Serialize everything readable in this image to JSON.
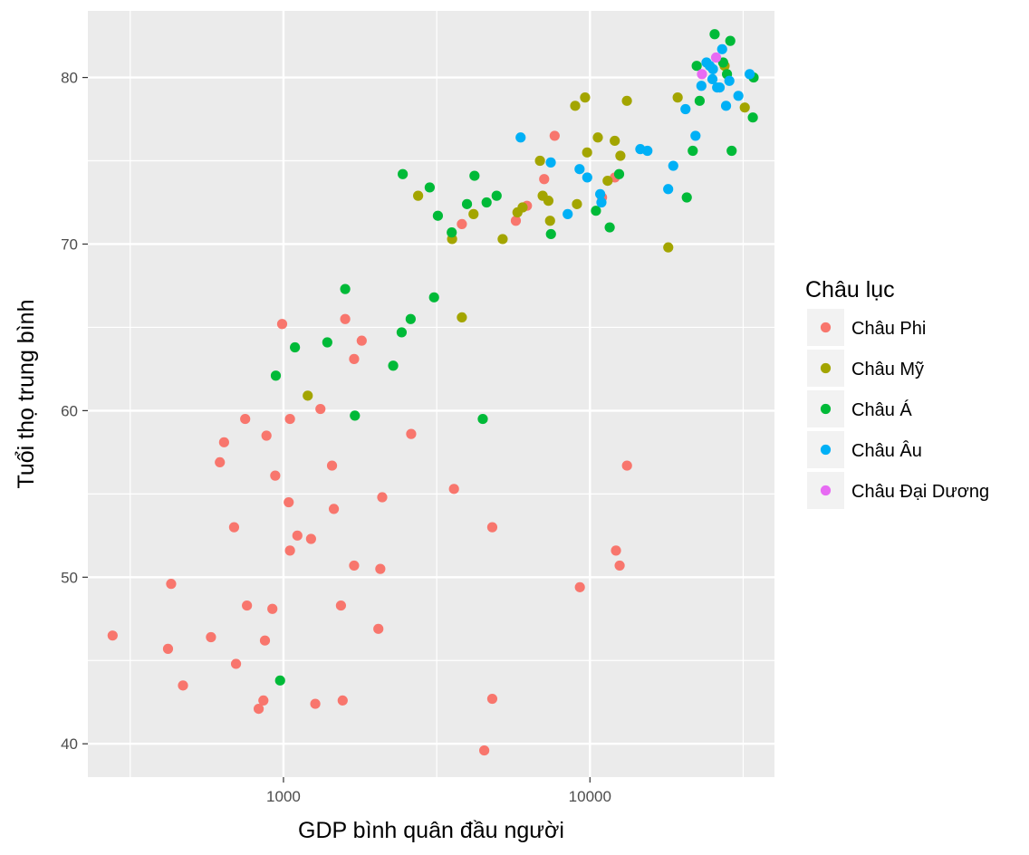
{
  "chart_data": {
    "type": "scatter",
    "xlabel": "GDP bình quân đầu người",
    "ylabel": "Tuổi thọ trung bình",
    "x_scale": "log10",
    "xlim": [
      230,
      40000
    ],
    "ylim": [
      38,
      84
    ],
    "x_ticks": [
      1000,
      10000
    ],
    "x_tick_labels": [
      "1000",
      "10000"
    ],
    "y_ticks": [
      40,
      50,
      60,
      70,
      80
    ],
    "y_tick_labels": [
      "40",
      "50",
      "60",
      "70",
      "80"
    ],
    "grid": true,
    "background": "#ebebeb",
    "legend": {
      "title": "Châu lục",
      "position": "right"
    },
    "series": [
      {
        "name": "Châu Phi",
        "color": "#F8766D",
        "points": [
          [
            277,
            46.5
          ],
          [
            420,
            45.7
          ],
          [
            430,
            49.6
          ],
          [
            470,
            43.5
          ],
          [
            580,
            46.4
          ],
          [
            620,
            56.9
          ],
          [
            640,
            58.1
          ],
          [
            690,
            53.0
          ],
          [
            700,
            44.8
          ],
          [
            750,
            59.5
          ],
          [
            760,
            48.3
          ],
          [
            830,
            42.1
          ],
          [
            860,
            42.6
          ],
          [
            870,
            46.2
          ],
          [
            880,
            58.5
          ],
          [
            920,
            48.1
          ],
          [
            940,
            56.1
          ],
          [
            990,
            65.2
          ],
          [
            1040,
            54.5
          ],
          [
            1050,
            51.6
          ],
          [
            1050,
            59.5
          ],
          [
            1110,
            52.5
          ],
          [
            1230,
            52.3
          ],
          [
            1270,
            42.4
          ],
          [
            1320,
            60.1
          ],
          [
            1440,
            56.7
          ],
          [
            1460,
            54.1
          ],
          [
            1540,
            48.3
          ],
          [
            1560,
            42.6
          ],
          [
            1590,
            65.5
          ],
          [
            1700,
            50.7
          ],
          [
            1700,
            63.1
          ],
          [
            1800,
            64.2
          ],
          [
            2040,
            46.9
          ],
          [
            2070,
            50.5
          ],
          [
            2100,
            54.8
          ],
          [
            2610,
            58.6
          ],
          [
            3600,
            55.3
          ],
          [
            3820,
            71.2
          ],
          [
            4520,
            39.6
          ],
          [
            4800,
            42.7
          ],
          [
            4800,
            53.0
          ],
          [
            5730,
            71.4
          ],
          [
            6230,
            72.3
          ],
          [
            7090,
            73.9
          ],
          [
            7670,
            76.5
          ],
          [
            9270,
            49.4
          ],
          [
            10950,
            72.8
          ],
          [
            12060,
            74.0
          ],
          [
            12160,
            51.6
          ],
          [
            12500,
            50.7
          ],
          [
            13210,
            56.7
          ]
        ]
      },
      {
        "name": "Châu Mỹ",
        "color": "#A3A500",
        "points": [
          [
            1200,
            60.9
          ],
          [
            2750,
            72.9
          ],
          [
            3550,
            70.3
          ],
          [
            3820,
            65.6
          ],
          [
            4170,
            71.8
          ],
          [
            5190,
            70.3
          ],
          [
            5800,
            71.9
          ],
          [
            6030,
            72.2
          ],
          [
            6870,
            75.0
          ],
          [
            7010,
            72.9
          ],
          [
            7320,
            72.6
          ],
          [
            7410,
            71.4
          ],
          [
            8950,
            78.3
          ],
          [
            9070,
            72.4
          ],
          [
            9640,
            78.8
          ],
          [
            9790,
            75.5
          ],
          [
            10610,
            76.4
          ],
          [
            11420,
            73.8
          ],
          [
            12050,
            76.2
          ],
          [
            12570,
            75.3
          ],
          [
            13200,
            78.6
          ],
          [
            18010,
            69.8
          ],
          [
            19330,
            78.8
          ],
          [
            27500,
            80.7
          ],
          [
            32000,
            78.2
          ]
        ]
      },
      {
        "name": "Châu Á",
        "color": "#00BA38",
        "points": [
          [
            944,
            62.1
          ],
          [
            975,
            43.8
          ],
          [
            1090,
            63.8
          ],
          [
            1390,
            64.1
          ],
          [
            1590,
            67.3
          ],
          [
            1710,
            59.7
          ],
          [
            2280,
            62.7
          ],
          [
            2430,
            64.7
          ],
          [
            2450,
            74.2
          ],
          [
            2600,
            65.5
          ],
          [
            3000,
            73.4
          ],
          [
            3100,
            66.8
          ],
          [
            3190,
            71.7
          ],
          [
            3540,
            70.7
          ],
          [
            3970,
            72.4
          ],
          [
            4200,
            74.1
          ],
          [
            4470,
            59.5
          ],
          [
            4600,
            72.5
          ],
          [
            4960,
            72.9
          ],
          [
            7460,
            70.6
          ],
          [
            10460,
            72.0
          ],
          [
            11600,
            71.0
          ],
          [
            12450,
            74.2
          ],
          [
            20700,
            72.8
          ],
          [
            21650,
            75.6
          ],
          [
            22300,
            80.7
          ],
          [
            22800,
            78.6
          ],
          [
            25520,
            82.6
          ],
          [
            27200,
            80.9
          ],
          [
            28000,
            80.2
          ],
          [
            28700,
            82.2
          ],
          [
            29000,
            75.6
          ],
          [
            34000,
            77.6
          ],
          [
            34200,
            80.0
          ]
        ]
      },
      {
        "name": "Châu Âu",
        "color": "#00B0F6",
        "points": [
          [
            5940,
            76.4
          ],
          [
            7450,
            74.9
          ],
          [
            8460,
            71.8
          ],
          [
            9250,
            74.5
          ],
          [
            9800,
            74.0
          ],
          [
            10800,
            73.0
          ],
          [
            10900,
            72.5
          ],
          [
            14600,
            75.7
          ],
          [
            15400,
            75.6
          ],
          [
            18000,
            73.3
          ],
          [
            18700,
            74.7
          ],
          [
            20500,
            78.1
          ],
          [
            22100,
            76.5
          ],
          [
            23100,
            79.5
          ],
          [
            24000,
            80.9
          ],
          [
            25100,
            79.9
          ],
          [
            25200,
            80.5
          ],
          [
            26000,
            79.4
          ],
          [
            26500,
            79.4
          ],
          [
            27000,
            81.7
          ],
          [
            27800,
            78.3
          ],
          [
            28500,
            79.8
          ],
          [
            30500,
            78.9
          ],
          [
            33200,
            80.2
          ],
          [
            24600,
            80.7
          ]
        ]
      },
      {
        "name": "Châu Đại Dương",
        "color": "#E76BF3",
        "points": [
          [
            23200,
            80.2
          ],
          [
            25800,
            81.2
          ]
        ]
      }
    ]
  }
}
